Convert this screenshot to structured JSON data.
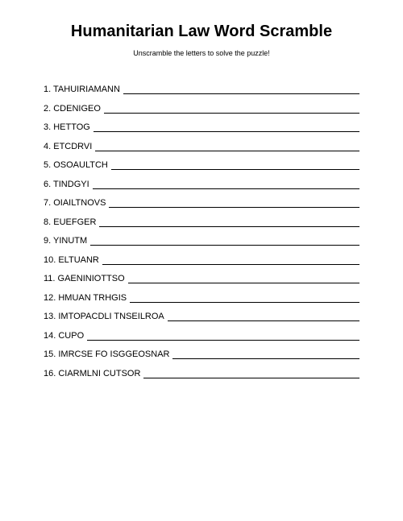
{
  "title": "Humanitarian Law Word Scramble",
  "subtitle": "Unscramble the letters to solve the puzzle!",
  "items": [
    {
      "num": "1",
      "word": "TAHUIRIAMANN"
    },
    {
      "num": "2",
      "word": "CDENIGEO"
    },
    {
      "num": "3",
      "word": "HETTOG"
    },
    {
      "num": "4",
      "word": "ETCDRVI"
    },
    {
      "num": "5",
      "word": "OSOAULTCH"
    },
    {
      "num": "6",
      "word": "TINDGYI"
    },
    {
      "num": "7",
      "word": "OIAILTNOVS"
    },
    {
      "num": "8",
      "word": "EUEFGER"
    },
    {
      "num": "9",
      "word": "YINUTM"
    },
    {
      "num": "10",
      "word": "ELTUANR"
    },
    {
      "num": "11",
      "word": "GAENINIOTTSO"
    },
    {
      "num": "12",
      "word": "HMUAN TRHGIS"
    },
    {
      "num": "13",
      "word": "IMTOPACDLI TNSEILROA"
    },
    {
      "num": "14",
      "word": "CUPO"
    },
    {
      "num": "15",
      "word": "IMRCSE FO ISGGEOSNAR"
    },
    {
      "num": "16",
      "word": "CIARMLNI CUTSOR"
    }
  ],
  "colors": {
    "background": "#ffffff",
    "text": "#000000",
    "line": "#000000"
  },
  "typography": {
    "title_fontsize": 20,
    "subtitle_fontsize": 9,
    "item_fontsize": 11,
    "font_family": "Arial"
  }
}
